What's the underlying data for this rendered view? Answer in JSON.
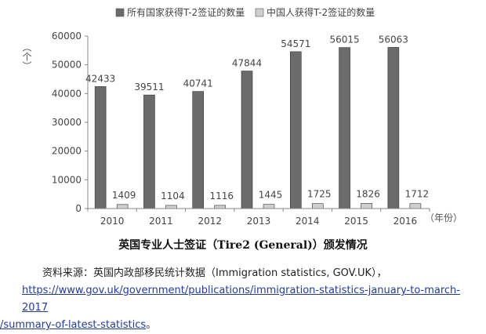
{
  "chart_data": {
    "type": "bar",
    "categories": [
      "2010",
      "2011",
      "2012",
      "2013",
      "2014",
      "2015",
      "2016"
    ],
    "series": [
      {
        "name": "所有国家获得T-2签证的数量",
        "values": [
          42433,
          39511,
          40741,
          47844,
          54571,
          56015,
          56063
        ],
        "color": "#6b6b6b"
      },
      {
        "name": "中国人获得T-2签证的数量",
        "values": [
          1409,
          1104,
          1116,
          1445,
          1725,
          1826,
          1712
        ],
        "color": "#cfcfcf"
      }
    ],
    "ylabel": "（个）",
    "xlabel": "（年份）",
    "ylim": [
      0,
      60000
    ],
    "yticks": [
      0,
      10000,
      20000,
      30000,
      40000,
      50000,
      60000
    ],
    "legend_position": "top",
    "grid": false,
    "title": "英国专业人士签证（Tire2 (General)）颁发情况"
  },
  "source": {
    "prefix": "资料来源：英国内政部移民统计数据（Immigration statistics, GOV.UK），",
    "link_line1": "https://www.gov.uk/government/publications/immigration-statistics-january-to-march-2017",
    "link_line2": "/summary-of-latest-statistics",
    "suffix": "。"
  }
}
